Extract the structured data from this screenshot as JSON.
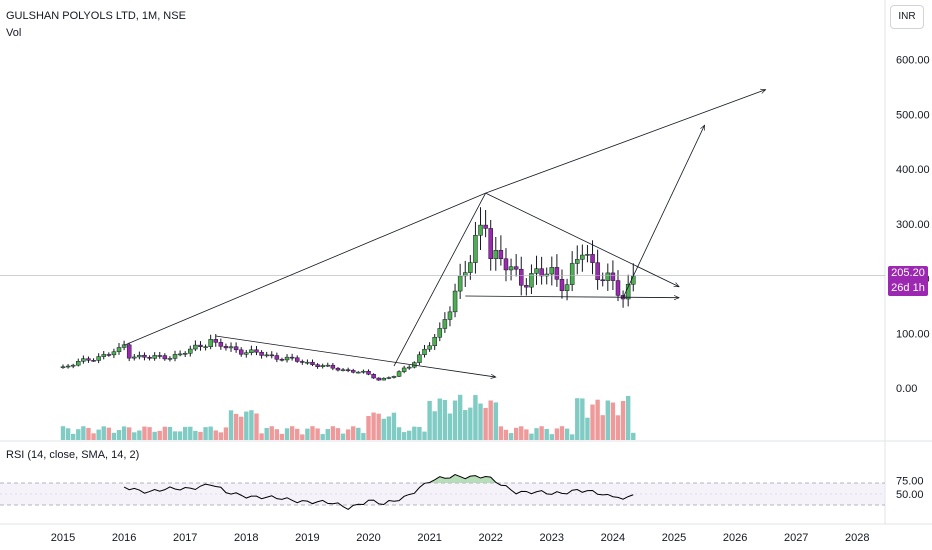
{
  "header": {
    "title": "GULSHAN POLYOLS LTD, 1M, NSE",
    "volume_label": "Vol",
    "currency": "INR"
  },
  "price_tag": {
    "price": "205.20",
    "countdown": "26d 1h",
    "value": 205.2,
    "color": "#9c27b0"
  },
  "colors": {
    "up": "#4caf50",
    "down": "#9c27b0",
    "vol_up": "#80cbc4",
    "vol_down": "#ef9a9a",
    "rsi": "#000000",
    "rsi_band": "#ede7f6"
  },
  "chart_data": {
    "type": "candlestick",
    "title": "GULSHAN POLYOLS LTD, 1M, NSE",
    "price_axis": {
      "ticks": [
        "600.00",
        "500.00",
        "400.00",
        "300.00",
        "200.00",
        "100.00",
        "0.00"
      ],
      "range": [
        -20,
        640
      ]
    },
    "time_axis": {
      "ticks": [
        "2015",
        "2016",
        "2017",
        "2018",
        "2019",
        "2020",
        "2021",
        "2022",
        "2023",
        "2024",
        "2025",
        "2026",
        "2027",
        "2028"
      ]
    },
    "month_range": [
      "2015-01",
      "2024-05"
    ],
    "close_anchors": [
      [
        "2015-01",
        38
      ],
      [
        "2015-06",
        52
      ],
      [
        "2015-12",
        68
      ],
      [
        "2016-01",
        78
      ],
      [
        "2016-02",
        60
      ],
      [
        "2016-06",
        55
      ],
      [
        "2016-12",
        60
      ],
      [
        "2017-06",
        88
      ],
      [
        "2017-07",
        78
      ],
      [
        "2017-12",
        68
      ],
      [
        "2018-06",
        58
      ],
      [
        "2018-12",
        48
      ],
      [
        "2019-06",
        36
      ],
      [
        "2019-12",
        28
      ],
      [
        "2020-01",
        24
      ],
      [
        "2020-03",
        15
      ],
      [
        "2020-06",
        22
      ],
      [
        "2020-09",
        40
      ],
      [
        "2020-12",
        70
      ],
      [
        "2021-03",
        100
      ],
      [
        "2021-06",
        180
      ],
      [
        "2021-09",
        230
      ],
      [
        "2021-12",
        320
      ],
      [
        "2022-01",
        250
      ],
      [
        "2022-04",
        220
      ],
      [
        "2022-07",
        200
      ],
      [
        "2022-10",
        205
      ],
      [
        "2023-01",
        210
      ],
      [
        "2023-04",
        190
      ],
      [
        "2023-07",
        250
      ],
      [
        "2023-10",
        215
      ],
      [
        "2024-01",
        185
      ],
      [
        "2024-03",
        165
      ],
      [
        "2024-05",
        205.2
      ]
    ],
    "peak_high": 356,
    "volume_label": "Vol",
    "rsi": {
      "label": "RSI (14, close, SMA, 14, 2)",
      "ticks": [
        "75.00",
        "50.00"
      ],
      "band": [
        30,
        70
      ],
      "anchors": [
        [
          "2016-01",
          62
        ],
        [
          "2016-06",
          55
        ],
        [
          "2017-01",
          60
        ],
        [
          "2017-06",
          68
        ],
        [
          "2017-09",
          52
        ],
        [
          "2018-06",
          42
        ],
        [
          "2018-12",
          38
        ],
        [
          "2019-06",
          32
        ],
        [
          "2019-09",
          26
        ],
        [
          "2020-01",
          38
        ],
        [
          "2020-04",
          30
        ],
        [
          "2020-08",
          45
        ],
        [
          "2021-01",
          72
        ],
        [
          "2021-06",
          84
        ],
        [
          "2021-12",
          80
        ],
        [
          "2022-06",
          55
        ],
        [
          "2023-01",
          50
        ],
        [
          "2023-06",
          58
        ],
        [
          "2023-12",
          46
        ],
        [
          "2024-02",
          48
        ],
        [
          "2024-03",
          40
        ],
        [
          "2024-05",
          52
        ]
      ]
    }
  }
}
